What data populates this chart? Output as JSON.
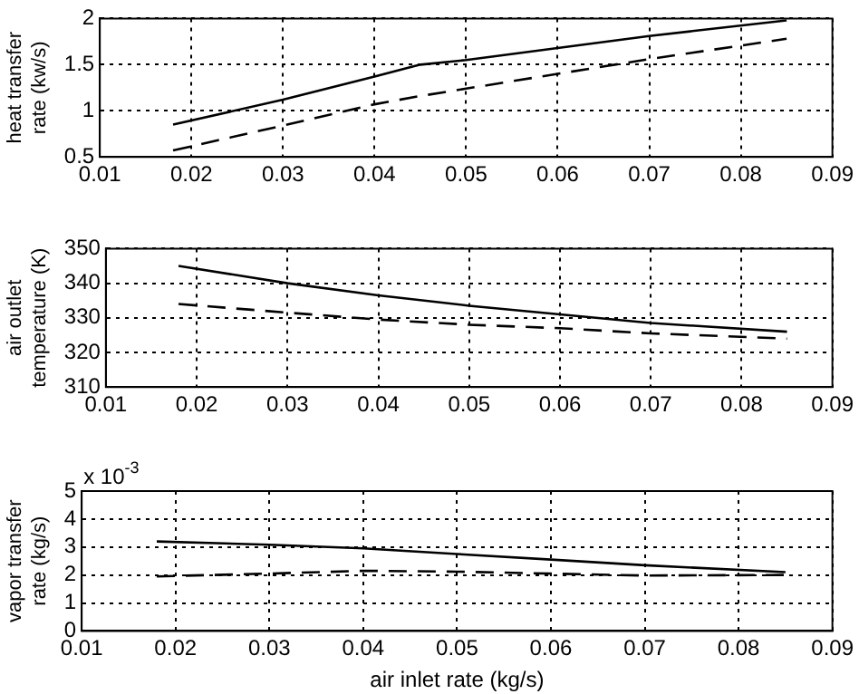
{
  "chart_data": [
    {
      "type": "line",
      "ylabel": "heat transfer rate (kw/s)",
      "xlim": [
        0.01,
        0.09
      ],
      "xticks": [
        0.01,
        0.02,
        0.03,
        0.04,
        0.05,
        0.06,
        0.07,
        0.08,
        0.09
      ],
      "ylim": [
        0.5,
        2
      ],
      "yticks": [
        0.5,
        1,
        1.5,
        2
      ],
      "grid": true,
      "legend": false,
      "x": [
        0.018,
        0.03,
        0.04,
        0.045,
        0.05,
        0.06,
        0.07,
        0.085
      ],
      "series": [
        {
          "color": "#000000",
          "line_style": "solid",
          "values": [
            0.85,
            1.12,
            1.37,
            1.5,
            1.55,
            1.68,
            1.81,
            1.98
          ]
        },
        {
          "color": "#000000",
          "line_style": "dashed",
          "values": [
            0.57,
            0.84,
            1.07,
            1.16,
            1.24,
            1.4,
            1.56,
            1.78
          ]
        }
      ]
    },
    {
      "type": "line",
      "ylabel": "air outlet temperature (K)",
      "xlim": [
        0.01,
        0.09
      ],
      "xticks": [
        0.01,
        0.02,
        0.03,
        0.04,
        0.05,
        0.06,
        0.07,
        0.08,
        0.09
      ],
      "ylim": [
        310,
        350
      ],
      "yticks": [
        310,
        320,
        330,
        340,
        350
      ],
      "grid": true,
      "legend": false,
      "x": [
        0.018,
        0.03,
        0.04,
        0.05,
        0.06,
        0.07,
        0.085
      ],
      "series": [
        {
          "color": "#000000",
          "line_style": "solid",
          "values": [
            345,
            340,
            336.5,
            333.5,
            331,
            328.5,
            326
          ]
        },
        {
          "color": "#000000",
          "line_style": "dashed",
          "values": [
            334,
            331.5,
            329.5,
            328,
            327,
            325.5,
            324
          ]
        }
      ]
    },
    {
      "type": "line",
      "ylabel": "vapor transfer rate (kg/s)",
      "xlabel": "air inlet rate (kg/s)",
      "annotations": [
        "x 10$^{-3}$"
      ],
      "xlim": [
        0.01,
        0.09
      ],
      "xticks": [
        0.01,
        0.02,
        0.03,
        0.04,
        0.05,
        0.06,
        0.07,
        0.08,
        0.09
      ],
      "ylim": [
        0,
        5
      ],
      "yticks": [
        0,
        1,
        2,
        3,
        4,
        5
      ],
      "grid": true,
      "legend": false,
      "x": [
        0.018,
        0.03,
        0.04,
        0.05,
        0.06,
        0.07,
        0.085
      ],
      "series": [
        {
          "color": "#000000",
          "line_style": "solid",
          "values": [
            3.2,
            3.08,
            2.95,
            2.75,
            2.55,
            2.35,
            2.1
          ]
        },
        {
          "color": "#000000",
          "line_style": "dashed",
          "values": [
            1.95,
            2.05,
            2.15,
            2.12,
            2.05,
            1.98,
            2.0
          ]
        }
      ]
    }
  ]
}
